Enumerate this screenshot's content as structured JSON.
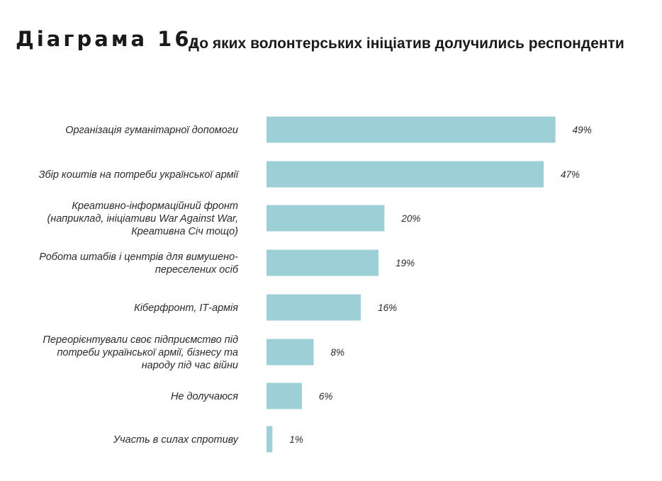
{
  "title": {
    "number": "Діаграма 16.",
    "text": "До яких волонтерських ініціатив долучились респонденти"
  },
  "colors": {
    "bar": "#9ccfd6",
    "text": "#2b2b2b"
  },
  "chart_data": {
    "type": "bar",
    "orientation": "horizontal",
    "categories": [
      [
        "Організація гуманітарної допомоги"
      ],
      [
        "Збір коштів на потреби української армії"
      ],
      [
        "Креативно-інформаційний фронт",
        "(наприклад, ініціативи War Against War,",
        "Креативна Січ тощо)"
      ],
      [
        "Робота штабів і центрів для вимушено-",
        "переселених осіб"
      ],
      [
        "Кіберфронт, ІТ-армія"
      ],
      [
        "Переорієнтували своє підприємство під",
        "потреби української армії, бізнесу та",
        "народу під час війни"
      ],
      [
        "Не долучаюся"
      ],
      [
        "Участь в силах спротиву"
      ]
    ],
    "values": [
      49,
      47,
      20,
      19,
      16,
      8,
      6,
      1
    ],
    "value_labels": [
      "49%",
      "47%",
      "20%",
      "19%",
      "16%",
      "8%",
      "6%",
      "1%"
    ],
    "unit": "%",
    "grid": false,
    "legend": "none"
  }
}
